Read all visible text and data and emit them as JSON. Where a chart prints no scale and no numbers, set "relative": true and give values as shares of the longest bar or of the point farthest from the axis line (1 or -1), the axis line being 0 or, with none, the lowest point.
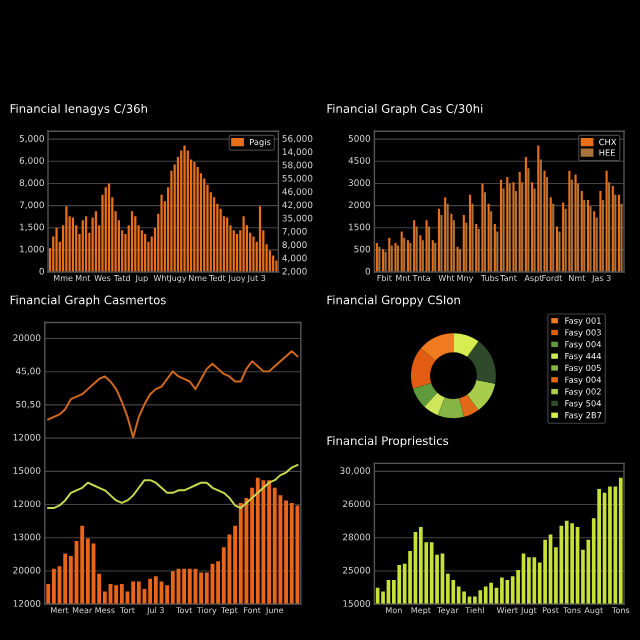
{
  "chart_data": [
    {
      "type": "bar",
      "title": "Financial Ienagys C/36h",
      "legend": "top right",
      "grid": "y",
      "relative": true,
      "annotations": [
        "5,000\n6,000\n8,000\n7,000\n1,500\n1,000\n0",
        "56,000\n14,000\n58,000\n55,000\n46,000\n42,000\n35,000\n7,000\n8,000\n4,000\n2,000"
      ],
      "categories": [
        null,
        null,
        null,
        null,
        "Mme",
        null,
        null,
        null,
        null,
        null,
        "Mnt",
        null,
        null,
        null,
        null,
        null,
        "Wes",
        null,
        null,
        null,
        null,
        null,
        "Tatd",
        null,
        null,
        null,
        null,
        null,
        "Jup",
        null,
        null,
        null,
        null,
        null,
        "Wht",
        null,
        null,
        null,
        null,
        "Jugy",
        null,
        null,
        null,
        null,
        null,
        "Nme",
        null,
        null,
        null,
        null,
        null,
        "Tedt",
        null,
        null,
        null,
        null,
        null,
        "Juoy",
        null,
        null,
        null,
        null,
        null,
        "Jut 3",
        null,
        null,
        null,
        null,
        null,
        null
      ],
      "series": [
        {
          "name": "Pagis",
          "color": "#e8701a",
          "values": [
            0.19,
            0.28,
            0.35,
            0.24,
            0.37,
            0.52,
            0.44,
            0.43,
            0.37,
            0.3,
            0.41,
            0.44,
            0.31,
            0.43,
            0.48,
            0.37,
            0.61,
            0.67,
            0.7,
            0.59,
            0.48,
            0.41,
            0.33,
            0.3,
            0.37,
            0.48,
            0.44,
            0.37,
            0.33,
            0.3,
            0.24,
            0.28,
            0.35,
            0.46,
            0.61,
            0.56,
            0.67,
            0.8,
            0.85,
            0.91,
            0.96,
            1,
            0.96,
            0.89,
            0.87,
            0.83,
            0.78,
            0.74,
            0.69,
            0.63,
            0.59,
            0.54,
            0.5,
            0.44,
            0.43,
            0.37,
            0.33,
            0.3,
            0.33,
            0.44,
            0.37,
            0.31,
            0.28,
            0.24,
            0.52,
            0.33,
            0.22,
            0.17,
            0.13,
            0.09
          ]
        }
      ]
    },
    {
      "type": "bar",
      "title": "Financial Graph Cas C/30hi",
      "legend": "top right",
      "grid": "y",
      "relative": true,
      "annotations": [
        "5000\n4500\n3000\n2000\n1500\n500\n0"
      ],
      "categories": [
        null,
        "Fbit",
        null,
        null,
        "Mnt",
        null,
        null,
        "Tnta",
        null,
        null,
        null,
        "Wht",
        null,
        null,
        "Mny",
        null,
        null,
        null,
        "Tubs",
        null,
        null,
        "Tant",
        null,
        null,
        null,
        "Aspt",
        null,
        null,
        "Fordt",
        null,
        null,
        null,
        "Nmt",
        null,
        null,
        null,
        "Jas 3",
        null,
        null,
        null
      ],
      "series": [
        {
          "name": "CHX",
          "color": "#e8701a",
          "values": [
            0.23,
            0.18,
            0.27,
            0.23,
            0.32,
            0.25,
            0.41,
            0.29,
            0.41,
            0.25,
            0.5,
            0.59,
            0.46,
            0.2,
            0.45,
            0.61,
            0.38,
            0.7,
            0.54,
            0.38,
            0.73,
            0.75,
            0.71,
            0.79,
            0.91,
            0.71,
            1,
            0.8,
            0.59,
            0.36,
            0.55,
            0.8,
            0.77,
            0.64,
            0.57,
            0.48,
            0.64,
            0.8,
            0.68,
            0.61
          ]
        },
        {
          "name": "HEE",
          "color": "#a8743e",
          "values": [
            0.2,
            0.16,
            0.21,
            0.21,
            0.27,
            0.23,
            0.36,
            0.25,
            0.36,
            0.23,
            0.45,
            0.54,
            0.41,
            0.18,
            0.39,
            0.54,
            0.34,
            0.63,
            0.48,
            0.32,
            0.66,
            0.7,
            0.64,
            0.71,
            0.82,
            0.66,
            0.89,
            0.75,
            0.54,
            0.32,
            0.5,
            0.73,
            0.7,
            0.57,
            0.52,
            0.43,
            0.57,
            0.71,
            0.61,
            0.54
          ]
        }
      ]
    },
    {
      "type": "bar",
      "title": "Financial Graph Casmertos",
      "grid": "y",
      "relative": true,
      "annotations": [
        "20000\n45,00\n50,50\n12000\n15000\n12000\n13000\n20000\n12000"
      ],
      "categories": [
        null,
        null,
        "Mert",
        null,
        null,
        null,
        "Mear",
        null,
        null,
        null,
        "Mess",
        null,
        null,
        null,
        "Tort",
        null,
        null,
        null,
        null,
        "Jul 3",
        null,
        null,
        null,
        null,
        "Tovt",
        null,
        null,
        null,
        "Tiory",
        null,
        null,
        null,
        "Tept",
        null,
        null,
        null,
        "Font",
        null,
        null,
        null,
        "June",
        null,
        null,
        null,
        null
      ],
      "series": [
        {
          "color": "#e8651a",
          "values": [
            0.08,
            0.14,
            0.15,
            0.2,
            0.19,
            0.25,
            0.31,
            0.26,
            0.24,
            0.12,
            0.05,
            0.08,
            0.075,
            0.08,
            0.05,
            0.09,
            0.09,
            0.06,
            0.1,
            0.11,
            0.09,
            0.075,
            0.13,
            0.14,
            0.14,
            0.14,
            0.14,
            0.125,
            0.125,
            0.16,
            0.17,
            0.225,
            0.275,
            0.31,
            0.4,
            0.42,
            0.46,
            0.5,
            0.49,
            0.49,
            0.46,
            0.43,
            0.41,
            0.4,
            0.39
          ]
        },
        {
          "type": "line",
          "line_style": "solid",
          "color": "#d2691e",
          "values": [
            0.73,
            0.74,
            0.75,
            0.77,
            0.81,
            0.82,
            0.83,
            0.85,
            0.87,
            0.89,
            0.9,
            0.88,
            0.85,
            0.8,
            0.74,
            0.66,
            0.74,
            0.79,
            0.83,
            0.85,
            0.86,
            0.89,
            0.92,
            0.9,
            0.89,
            0.88,
            0.85,
            0.89,
            0.93,
            0.95,
            0.93,
            0.91,
            0.9,
            0.88,
            0.88,
            0.93,
            0.96,
            0.94,
            0.92,
            0.92,
            0.94,
            0.96,
            0.98,
            1,
            0.98
          ]
        },
        {
          "type": "line",
          "line_style": "solid",
          "color": "#c8d850",
          "values": [
            0.38,
            0.38,
            0.39,
            0.41,
            0.44,
            0.45,
            0.46,
            0.48,
            0.47,
            0.46,
            0.45,
            0.43,
            0.41,
            0.4,
            0.41,
            0.43,
            0.46,
            0.49,
            0.49,
            0.48,
            0.46,
            0.44,
            0.44,
            0.45,
            0.45,
            0.46,
            0.47,
            0.48,
            0.48,
            0.46,
            0.45,
            0.44,
            0.42,
            0.39,
            0.38,
            0.4,
            0.42,
            0.44,
            0.46,
            0.48,
            0.49,
            0.51,
            0.52,
            0.54,
            0.55
          ]
        }
      ]
    },
    {
      "type": "donut",
      "title": "Financial Groppy CSIon",
      "legend": "right",
      "categories": [
        "Fasy 001",
        "Fasy 003",
        "Fasy 004",
        "Fasy 444",
        "Fasy 005",
        "Fasy 004",
        "Fasy 002",
        "Fasy 504",
        "Fasy 2B7"
      ],
      "values": [
        14,
        16,
        8,
        6,
        10,
        6,
        12,
        18,
        10
      ],
      "colors": [
        "#f07a20",
        "#e25c12",
        "#5f9a3c",
        "#d0e65a",
        "#86b545",
        "#e06a18",
        "#a8cd4c",
        "#2e4a2a",
        "#d6ec50"
      ]
    },
    {
      "type": "bar",
      "title": "Financial Propriestics",
      "grid": "y",
      "relative": true,
      "annotations": [
        "30,000\n26000\n28000\n25000\n15000"
      ],
      "categories": [
        null,
        null,
        null,
        "Mon",
        null,
        null,
        null,
        null,
        "Mept",
        null,
        null,
        null,
        null,
        "Teyar",
        null,
        null,
        null,
        null,
        "Tiehl",
        null,
        null,
        null,
        null,
        null,
        "Wiert",
        null,
        null,
        null,
        "Jugt",
        null,
        null,
        null,
        "Post",
        null,
        null,
        null,
        "Tons",
        null,
        null,
        null,
        "Augt",
        null,
        null,
        null,
        null,
        "Tons"
      ],
      "series": [
        {
          "color": "#c8e03a",
          "values": [
            0.13,
            0.1,
            0.19,
            0.19,
            0.31,
            0.32,
            0.42,
            0.57,
            0.61,
            0.49,
            0.49,
            0.39,
            0.4,
            0.24,
            0.19,
            0.14,
            0.1,
            0.06,
            0.06,
            0.11,
            0.14,
            0.17,
            0.13,
            0.21,
            0.19,
            0.22,
            0.27,
            0.4,
            0.37,
            0.37,
            0.33,
            0.51,
            0.55,
            0.45,
            0.62,
            0.66,
            0.64,
            0.61,
            0.43,
            0.51,
            0.68,
            0.91,
            0.88,
            0.93,
            0.93,
            1
          ]
        }
      ]
    }
  ]
}
